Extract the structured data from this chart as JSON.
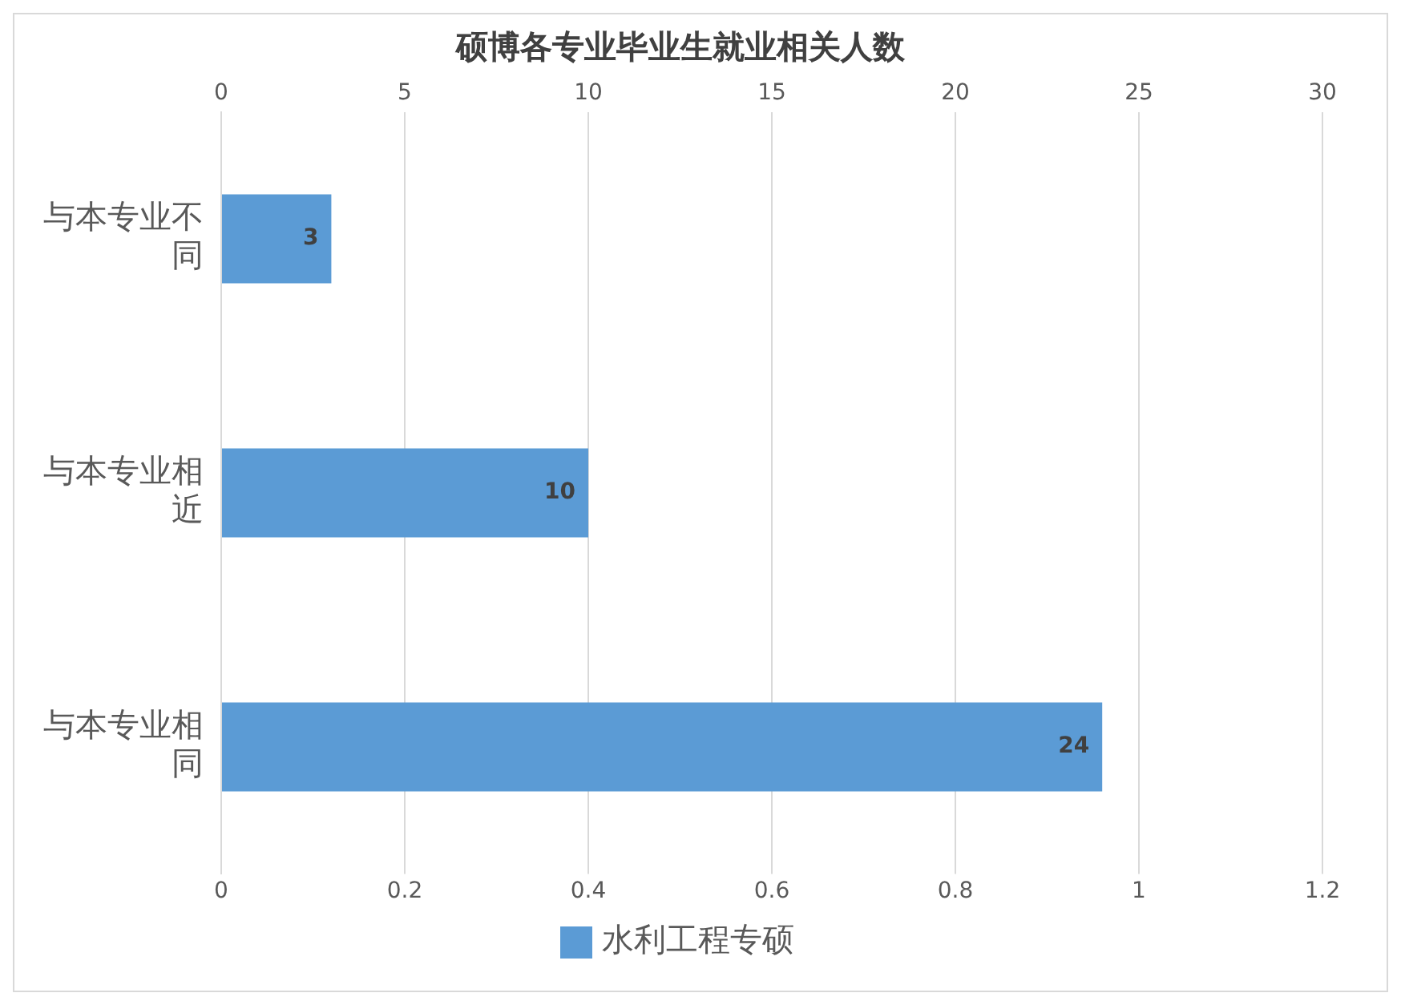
{
  "chart_data": {
    "type": "bar",
    "orientation": "horizontal",
    "title": "硕博各专业毕业生就业相关人数",
    "categories": [
      "与本专业不同",
      "与本专业相近",
      "与本专业相同"
    ],
    "series": [
      {
        "name": "水利工程专硕",
        "color": "#5b9bd5",
        "values": [
          3,
          10,
          24
        ],
        "axis": "x2"
      }
    ],
    "x2lim": [
      0,
      30
    ],
    "x2ticks": [
      0,
      5,
      10,
      15,
      20,
      25,
      30
    ],
    "xlim": [
      0,
      1.2
    ],
    "xticks": [
      0,
      0.2,
      0.4,
      0.6,
      0.8,
      1,
      1.2
    ],
    "grid": "x",
    "legend": "bottom",
    "data_labels": true
  }
}
